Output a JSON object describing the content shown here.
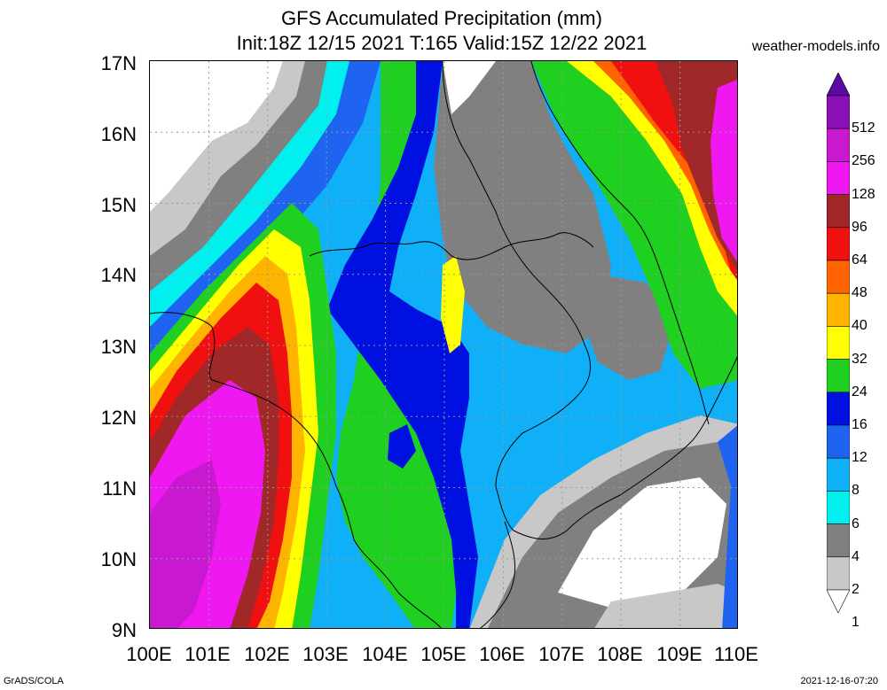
{
  "title": {
    "line1": "GFS Accumulated Precipitation (mm)",
    "line2": "Init:18Z 12/15 2021 T:165 Valid:15Z 12/22 2021"
  },
  "site": "weather-models.info",
  "footer": {
    "left": "GrADS/COLA",
    "right": "2021-12-16-07:20"
  },
  "axes": {
    "lat_labels": [
      "17N",
      "16N",
      "15N",
      "14N",
      "13N",
      "12N",
      "11N",
      "10N",
      "9N"
    ],
    "lon_labels": [
      "100E",
      "101E",
      "102E",
      "103E",
      "104E",
      "105E",
      "106E",
      "107E",
      "108E",
      "109E",
      "110E"
    ]
  },
  "colorbar": {
    "labels": [
      "512",
      "256",
      "128",
      "96",
      "64",
      "48",
      "40",
      "32",
      "24",
      "16",
      "12",
      "8",
      "6",
      "4",
      "2",
      "1"
    ],
    "colors": [
      "#5a0aa0",
      "#8a10b8",
      "#c818d0",
      "#f018f0",
      "#a02828",
      "#f01010",
      "#ff6400",
      "#ffb400",
      "#ffff00",
      "#20d020",
      "#0010e0",
      "#1e64f0",
      "#10b0f8",
      "#00f0f0",
      "#808080",
      "#c8c8c8",
      "#ffffff"
    ]
  },
  "map": {
    "extent": {
      "lon": [
        100,
        110
      ],
      "lat": [
        9,
        17
      ]
    },
    "colors": {
      "white": "#ffffff",
      "lgray": "#c8c8c8",
      "gray": "#808080",
      "cyan": "#00f0f0",
      "sky": "#10b0f8",
      "blue": "#1e64f0",
      "dblue": "#0010e0",
      "green": "#20d020",
      "yellow": "#ffff00",
      "orange": "#ffb400",
      "dorange": "#ff6400",
      "red": "#f01010",
      "brown": "#a02828",
      "magenta": "#f018f0",
      "purple": "#c818d0"
    }
  }
}
